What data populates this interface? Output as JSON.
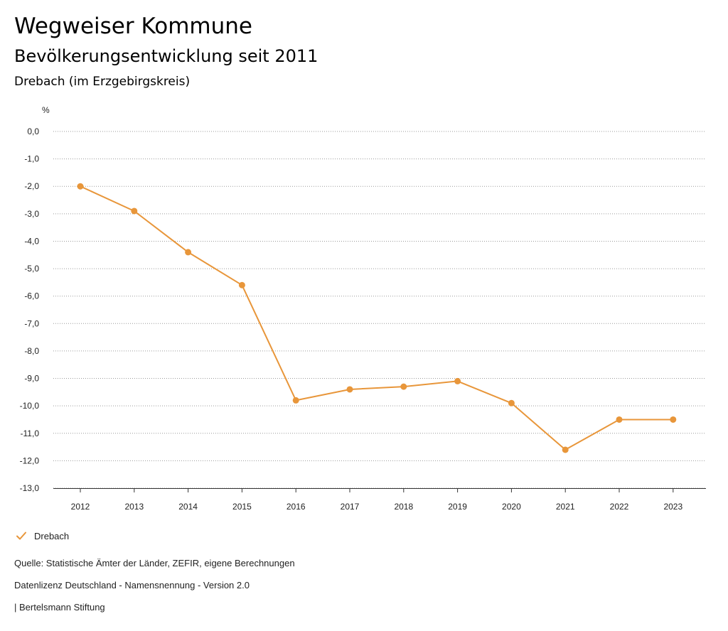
{
  "header": {
    "title": "Wegweiser Kommune",
    "subtitle": "Bevölkerungsentwicklung seit 2011",
    "region": "Drebach (im Erzgebirgskreis)"
  },
  "chart_data": {
    "type": "line",
    "title": "Bevölkerungsentwicklung seit 2011",
    "ylabel": "%",
    "xlabel": "",
    "ylim": [
      -13,
      0
    ],
    "yticks": [
      0,
      -1,
      -2,
      -3,
      -4,
      -5,
      -6,
      -7,
      -8,
      -9,
      -10,
      -11,
      -12,
      -13
    ],
    "ytick_labels": [
      "0,0",
      "-1,0",
      "-2,0",
      "-3,0",
      "-4,0",
      "-5,0",
      "-6,0",
      "-7,0",
      "-8,0",
      "-9,0",
      "-10,0",
      "-11,0",
      "-12,0",
      "-13,0"
    ],
    "categories": [
      "2012",
      "2013",
      "2014",
      "2015",
      "2016",
      "2017",
      "2018",
      "2019",
      "2020",
      "2021",
      "2022",
      "2023"
    ],
    "series": [
      {
        "name": "Drebach",
        "color": "#E8963A",
        "values": [
          -2.0,
          -2.9,
          -4.4,
          -5.6,
          -9.8,
          -9.4,
          -9.3,
          -9.1,
          -9.9,
          -11.6,
          -10.5,
          -10.5
        ]
      }
    ],
    "grid": "horizontal dotted",
    "legend_position": "bottom-left"
  },
  "footer": {
    "source": "Quelle: Statistische Ämter der Länder, ZEFIR, eigene Berechnungen",
    "license": "Datenlizenz Deutschland - Namensnennung - Version 2.0",
    "publisher": "| Bertelsmann Stiftung"
  }
}
